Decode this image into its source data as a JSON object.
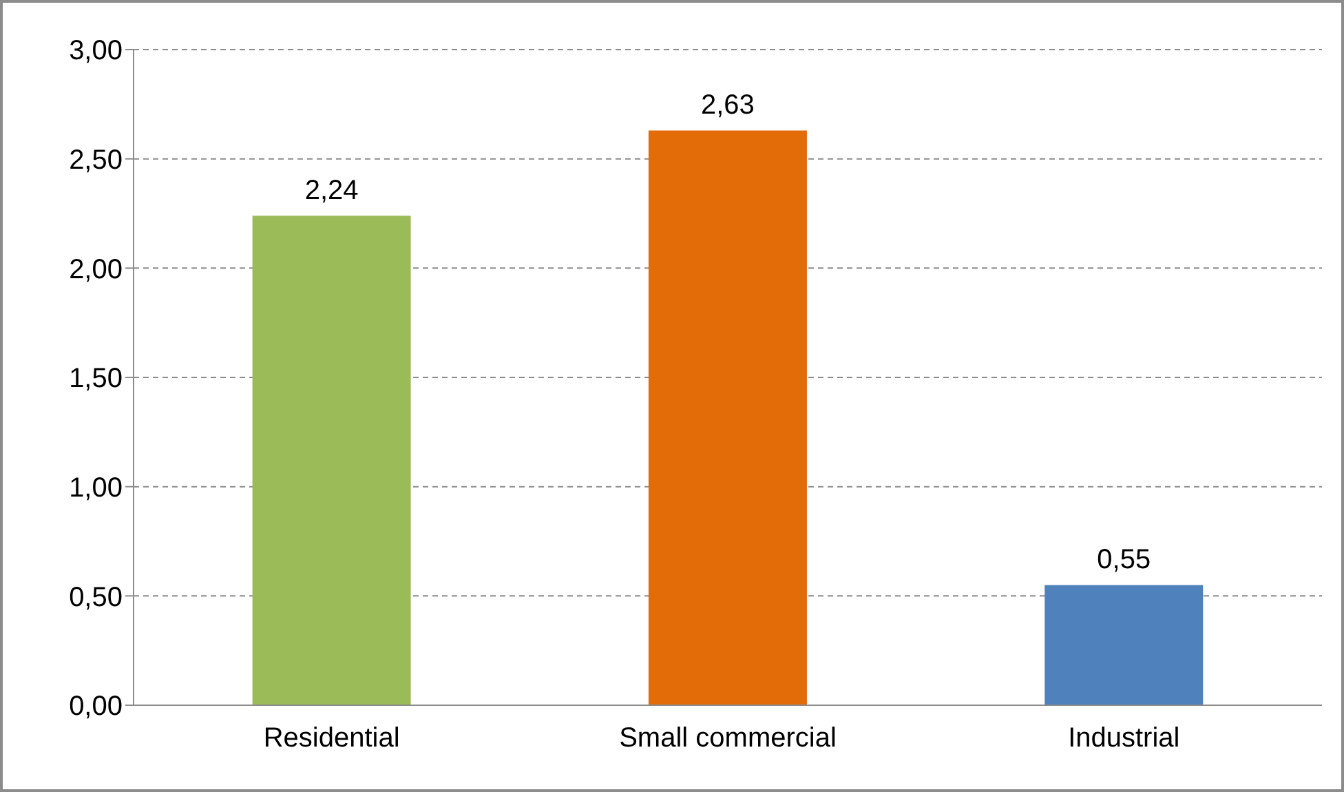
{
  "chart_data": {
    "type": "bar",
    "categories": [
      "Residential",
      "Small commercial",
      "Industrial"
    ],
    "values": [
      2.24,
      2.63,
      0.55
    ],
    "colors": [
      "#9bbb59",
      "#e36c09",
      "#4f81bd"
    ],
    "value_labels": [
      "2,24",
      "2,63",
      "0,55"
    ],
    "ylim": [
      0,
      3
    ],
    "yticks": [
      {
        "value": 0,
        "label": "0,00"
      },
      {
        "value": 0.5,
        "label": "0,50"
      },
      {
        "value": 1,
        "label": "1,00"
      },
      {
        "value": 1.5,
        "label": "1,50"
      },
      {
        "value": 2,
        "label": "2,00"
      },
      {
        "value": 2.5,
        "label": "2,50"
      },
      {
        "value": 3,
        "label": "3,00"
      }
    ],
    "grid": "y",
    "legend": false
  }
}
